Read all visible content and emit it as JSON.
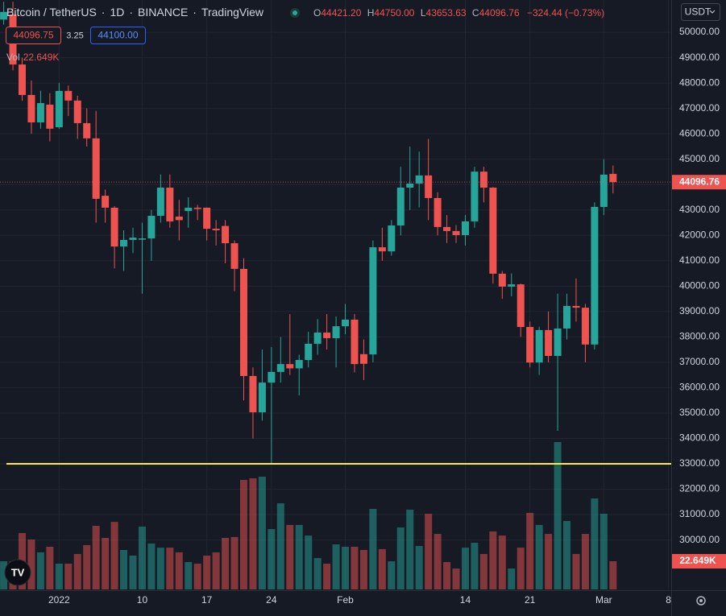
{
  "header": {
    "symbol": "Bitcoin / TetherUS",
    "interval": "1D",
    "exchange": "BINANCE",
    "source": "TradingView",
    "ohlc": [
      {
        "label": "O",
        "value": "44421.20"
      },
      {
        "label": "H",
        "value": "44750.00"
      },
      {
        "label": "L",
        "value": "43653.63"
      },
      {
        "label": "C",
        "value": "44096.76"
      }
    ],
    "change": "−324.44 (−0.73%)",
    "bid": "44096.75",
    "spread": "3.25",
    "ask": "44100.00",
    "vol_title": "Vol",
    "vol_value": "22.649K",
    "currency": "USDT"
  },
  "chart_data": {
    "type": "candlestick",
    "open": [
      50500,
      50700,
      48730,
      47530,
      46450,
      47150,
      46260,
      47690,
      47310,
      46420,
      45820,
      43560,
      43090,
      41560,
      41820,
      41830,
      41880,
      42770,
      43880,
      42740,
      42960,
      43090,
      43090,
      42260,
      42370,
      41690,
      40680,
      36460,
      35030,
      36200,
      36620,
      36930,
      36760,
      37090,
      37730,
      38170,
      37950,
      38420,
      38680,
      37320,
      37310,
      41530,
      41370,
      42390,
      43880,
      44040,
      44360,
      43470,
      42330,
      42170,
      42010,
      42550,
      44510,
      43880,
      40490,
      39980,
      40070,
      38390,
      36990,
      38270,
      37250,
      38330,
      39220,
      39150,
      37700,
      43120,
      44421.2
    ],
    "high": [
      51200,
      51200,
      49000,
      48100,
      47700,
      47600,
      48000,
      47900,
      47500,
      47000,
      46900,
      43800,
      43150,
      42200,
      42300,
      42500,
      43000,
      44400,
      44400,
      43400,
      43500,
      43200,
      43100,
      42600,
      42600,
      41800,
      41100,
      36800,
      37500,
      37600,
      38000,
      38900,
      37300,
      38200,
      38700,
      38900,
      38800,
      39300,
      38900,
      37900,
      41800,
      42300,
      42600,
      44700,
      45500,
      45300,
      45800,
      43700,
      42800,
      42400,
      42800,
      44700,
      44700,
      43900,
      40600,
      40500,
      40100,
      38600,
      38400,
      39000,
      39700,
      39700,
      40300,
      39300,
      43300,
      45000,
      44750
    ],
    "low": [
      50300,
      48500,
      47300,
      46000,
      46200,
      45700,
      46200,
      46700,
      45800,
      45500,
      42500,
      42500,
      40700,
      40600,
      41300,
      39700,
      41000,
      42500,
      42300,
      41800,
      42300,
      42600,
      41800,
      41600,
      40900,
      39800,
      35500,
      34000,
      34700,
      33000,
      36200,
      36500,
      35700,
      36800,
      37300,
      37500,
      36800,
      38100,
      36600,
      36300,
      37000,
      41000,
      41200,
      42000,
      43000,
      43100,
      42600,
      42000,
      41700,
      41700,
      41600,
      42300,
      43300,
      40100,
      39500,
      39600,
      38000,
      36800,
      36500,
      37000,
      34300,
      37900,
      38600,
      37000,
      37500,
      42800,
      43653.63
    ],
    "close": [
      50800,
      48730,
      47530,
      46450,
      47210,
      46200,
      47690,
      47310,
      46420,
      45820,
      43440,
      43090,
      41560,
      41820,
      41910,
      41880,
      42770,
      43880,
      42550,
      42600,
      43090,
      43040,
      42260,
      42200,
      41690,
      40680,
      36460,
      35030,
      36200,
      36620,
      36930,
      36760,
      37090,
      37730,
      38170,
      37950,
      38420,
      38680,
      36930,
      36940,
      41530,
      41370,
      42390,
      43880,
      44040,
      44360,
      43470,
      42330,
      42170,
      42010,
      42550,
      44510,
      43880,
      40490,
      39980,
      40070,
      38390,
      36990,
      38270,
      37250,
      38330,
      39220,
      39150,
      37700,
      43120,
      44390,
      44096.76
    ],
    "close_label": "44096.76",
    "volume": [
      22.6,
      22.6,
      45.3,
      40.1,
      29.8,
      34.3,
      20.7,
      20.7,
      28.5,
      35.6,
      51.1,
      41.4,
      54.3,
      31.7,
      27.2,
      50.5,
      36.9,
      33.6,
      33.6,
      29.8,
      22.0,
      20.7,
      27.2,
      29.8,
      41.4,
      42.1,
      88.0,
      89.3,
      90.6,
      48.5,
      69.2,
      51.8,
      51.8,
      43.3,
      25.2,
      20.7,
      36.2,
      34.3,
      34.3,
      31.7,
      64.7,
      32.4,
      22.6,
      49.8,
      64.1,
      34.9,
      60.8,
      44.6,
      22.0,
      16.8,
      33.6,
      37.5,
      28.5,
      46.6,
      43.3,
      16.8,
      33.6,
      61.5,
      51.8,
      44.6,
      118.4,
      55.0,
      28.5,
      44.6,
      73.1,
      60.8,
      22.649
    ],
    "volume_label": "22.649K",
    "xlim": [
      -0.4,
      72.3
    ],
    "xticks": [
      {
        "value": 6,
        "label": "2022"
      },
      {
        "value": 15,
        "label": "10"
      },
      {
        "value": 22,
        "label": "17"
      },
      {
        "value": 29,
        "label": "24"
      },
      {
        "value": 37,
        "label": "Feb"
      },
      {
        "value": 50,
        "label": "14"
      },
      {
        "value": 57,
        "label": "21"
      },
      {
        "value": 65,
        "label": "Mar"
      },
      {
        "value": 72,
        "label": "8"
      }
    ],
    "ylim": [
      28052,
      51271
    ],
    "yticks": [
      {
        "value": 30000,
        "label": "30000.00"
      },
      {
        "value": 31000,
        "label": "31000.00"
      },
      {
        "value": 32000,
        "label": "32000.00"
      },
      {
        "value": 33000,
        "label": "33000.00"
      },
      {
        "value": 34000,
        "label": "34000.00"
      },
      {
        "value": 35000,
        "label": "35000.00"
      },
      {
        "value": 36000,
        "label": "36000.00"
      },
      {
        "value": 37000,
        "label": "37000.00"
      },
      {
        "value": 38000,
        "label": "38000.00"
      },
      {
        "value": 39000,
        "label": "39000.00"
      },
      {
        "value": 40000,
        "label": "40000.00"
      },
      {
        "value": 41000,
        "label": "41000.00"
      },
      {
        "value": 42000,
        "label": "42000.00"
      },
      {
        "value": 43000,
        "label": "43000.00"
      },
      {
        "value": 44000,
        "label": "44000.00"
      },
      {
        "value": 45000,
        "label": "45000.00"
      },
      {
        "value": 46000,
        "label": "46000.00"
      },
      {
        "value": 47000,
        "label": "47000.00"
      },
      {
        "value": 48000,
        "label": "48000.00"
      },
      {
        "value": 49000,
        "label": "49000.00"
      },
      {
        "value": 50000,
        "label": "50000.00"
      }
    ],
    "grid": true,
    "up_color": "#26a69a",
    "down_color": "#ef5350",
    "hline": {
      "value": 33000,
      "color": "#ffeb3b"
    }
  }
}
